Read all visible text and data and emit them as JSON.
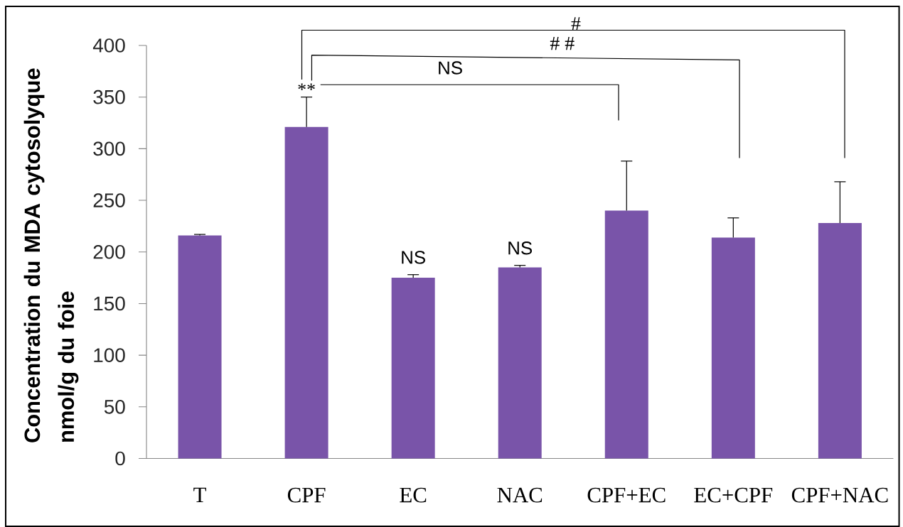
{
  "chart_data": {
    "type": "bar",
    "ylabel": "Concentration du MDA cytosolyque nmol/g du foie",
    "categories": [
      "T",
      "CPF",
      "EC",
      "NAC",
      "CPF+EC",
      "EC+CPF",
      "CPF+NAC"
    ],
    "values": [
      216,
      321,
      175,
      185,
      240,
      214,
      228
    ],
    "errors": [
      [
        216,
        217
      ],
      [
        321,
        350
      ],
      [
        175,
        178
      ],
      [
        185,
        187
      ],
      [
        240,
        288
      ],
      [
        214,
        233
      ],
      [
        228,
        268
      ]
    ],
    "color": "#7954a9",
    "ylim": [
      0,
      400
    ],
    "yticks": [
      0,
      50,
      100,
      150,
      200,
      250,
      300,
      350,
      400
    ],
    "annotations": [
      "#",
      "# #",
      "NS",
      {
        "text": "**",
        "x": "CPF",
        "y": 350
      },
      {
        "text": "NS",
        "x": "EC",
        "y": 178
      },
      {
        "text": "NS",
        "x": "NAC",
        "y": 187
      }
    ]
  }
}
